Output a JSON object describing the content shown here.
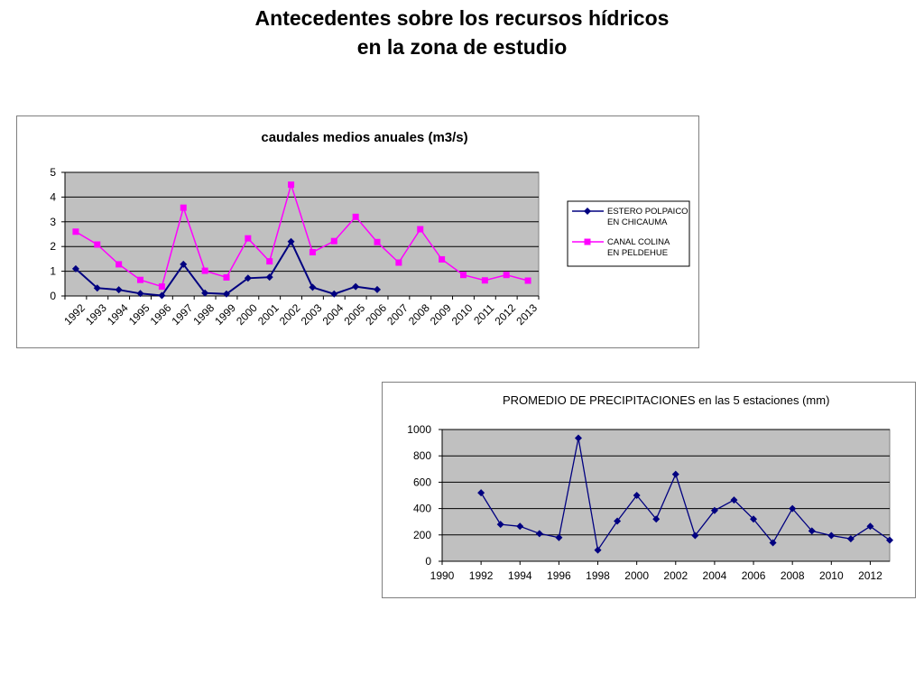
{
  "slide": {
    "title_line1": "Antecedentes sobre los recursos hídricos",
    "title_line2": "en la zona de estudio"
  },
  "chart_data": [
    {
      "type": "line",
      "title": "caudales medios anuales (m3/s)",
      "xlabel": "",
      "ylabel": "",
      "categories": [
        "1992",
        "1993",
        "1994",
        "1995",
        "1996",
        "1997",
        "1998",
        "1999",
        "2000",
        "2001",
        "2002",
        "2003",
        "2004",
        "2005",
        "2006",
        "2007",
        "2008",
        "2009",
        "2010",
        "2011",
        "2012",
        "2013"
      ],
      "ylim": [
        0,
        5
      ],
      "yticks": [
        0,
        1,
        2,
        3,
        4,
        5
      ],
      "grid": true,
      "plot_background": "#c0c0c0",
      "legend_position": "right",
      "series": [
        {
          "name": "ESTERO POLPAICO EN CHICAUMA",
          "color": "#000080",
          "marker": "diamond",
          "values": [
            1.1,
            0.32,
            0.25,
            0.1,
            0.02,
            1.28,
            0.12,
            0.08,
            0.72,
            0.76,
            2.2,
            0.35,
            0.08,
            0.38,
            0.26,
            null,
            null,
            null,
            null,
            null,
            null,
            null
          ]
        },
        {
          "name": "CANAL COLINA EN PELDEHUE",
          "color": "#ff00ff",
          "marker": "square",
          "values": [
            2.6,
            2.08,
            1.28,
            0.65,
            0.38,
            3.57,
            1.02,
            0.75,
            2.33,
            1.4,
            4.5,
            1.77,
            2.22,
            3.2,
            2.18,
            1.35,
            2.7,
            1.48,
            0.85,
            0.63,
            0.85,
            0.62
          ]
        }
      ]
    },
    {
      "type": "scatter",
      "title": "PROMEDIO DE PRECIPITACIONES  en las 5 estaciones (mm)",
      "xlabel": "",
      "ylabel": "",
      "xlim": [
        1990,
        2013
      ],
      "xticks": [
        1990,
        1992,
        1994,
        1996,
        1998,
        2000,
        2002,
        2004,
        2006,
        2008,
        2010,
        2012
      ],
      "ylim": [
        0,
        1000
      ],
      "yticks": [
        0,
        200,
        400,
        600,
        800,
        1000
      ],
      "grid": true,
      "plot_background": "#c0c0c0",
      "series": [
        {
          "color": "#000080",
          "marker": "diamond",
          "x": [
            1992,
            1993,
            1994,
            1995,
            1996,
            1997,
            1998,
            1999,
            2000,
            2001,
            2002,
            2003,
            2004,
            2005,
            2006,
            2007,
            2008,
            2009,
            2010,
            2011,
            2012,
            2013
          ],
          "y": [
            520,
            280,
            265,
            210,
            180,
            935,
            85,
            305,
            500,
            320,
            660,
            195,
            385,
            465,
            320,
            140,
            400,
            230,
            195,
            170,
            265,
            160
          ]
        }
      ]
    }
  ]
}
